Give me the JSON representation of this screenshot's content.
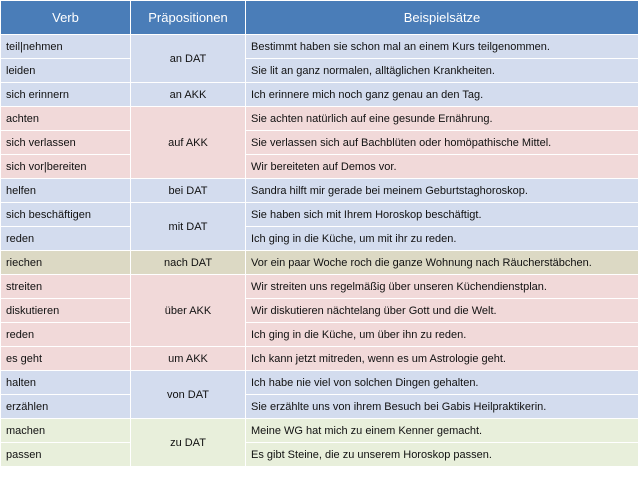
{
  "header": {
    "verb": "Verb",
    "prep": "Präpositionen",
    "examples": "Beispielsätze"
  },
  "rows": [
    {
      "verb": "teil|nehmen",
      "example": "Bestimmt haben sie schon mal an einem Kurs teilgenommen."
    },
    {
      "verb": "leiden",
      "example": "Sie lit an ganz normalen, alltäglichen Krankheiten."
    },
    {
      "verb": "sich erinnern",
      "example": "Ich erinnere mich noch ganz genau an den Tag."
    },
    {
      "verb": "achten",
      "example": "Sie achten natürlich auf eine gesunde Ernährung."
    },
    {
      "verb": "sich verlassen",
      "example": "Sie verlassen sich auf Bachblüten oder homöpathische Mittel."
    },
    {
      "verb": "sich vor|bereiten",
      "example": "Wir bereiteten auf Demos vor."
    },
    {
      "verb": "helfen",
      "example": "Sandra hilft mir gerade bei meinem Geburtstaghoroskop."
    },
    {
      "verb": "sich beschäftigen",
      "example": "Sie haben sich mit Ihrem Horoskop beschäftigt."
    },
    {
      "verb": "reden",
      "example": "Ich ging in die Küche, um mit ihr zu reden."
    },
    {
      "verb": "riechen",
      "example": "Vor ein paar Woche roch die ganze Wohnung nach Räucherstäbchen."
    },
    {
      "verb": "streiten",
      "example": "Wir streiten uns regelmäßig über unseren Küchendienstplan."
    },
    {
      "verb": "diskutieren",
      "example": "Wir diskutieren nächtelang über Gott und die Welt."
    },
    {
      "verb": "reden",
      "example": "Ich ging in die Küche, um über ihn zu reden."
    },
    {
      "verb": "es geht",
      "example": "Ich kann jetzt mitreden, wenn es um Astrologie geht."
    },
    {
      "verb": "halten",
      "example": "Ich habe nie viel von solchen Dingen gehalten."
    },
    {
      "verb": "erzählen",
      "example": "Sie erzählte uns von ihrem Besuch bei Gabis Heilpraktikerin."
    },
    {
      "verb": "machen",
      "example": "Meine WG hat mich zu einem Kenner gemacht."
    },
    {
      "verb": "passen",
      "example": "Es gibt Steine, die zu unserem Horoskop passen."
    }
  ],
  "preps": {
    "an_dat": "an DAT",
    "an_akk": "an AKK",
    "auf_akk": "auf AKK",
    "bei_dat": "bei DAT",
    "mit_dat": "mit DAT",
    "nach_dat": "nach DAT",
    "ueber_akk": "über AKK",
    "um_akk": "um AKK",
    "von_dat": "von DAT",
    "zu_dat": "zu DAT"
  },
  "colors": {
    "header": "#4a7db8",
    "group_blue": "#d3dcee",
    "group_pink": "#f1d9d9",
    "group_tan": "#dcd9c4",
    "group_green": "#e8efdb"
  }
}
